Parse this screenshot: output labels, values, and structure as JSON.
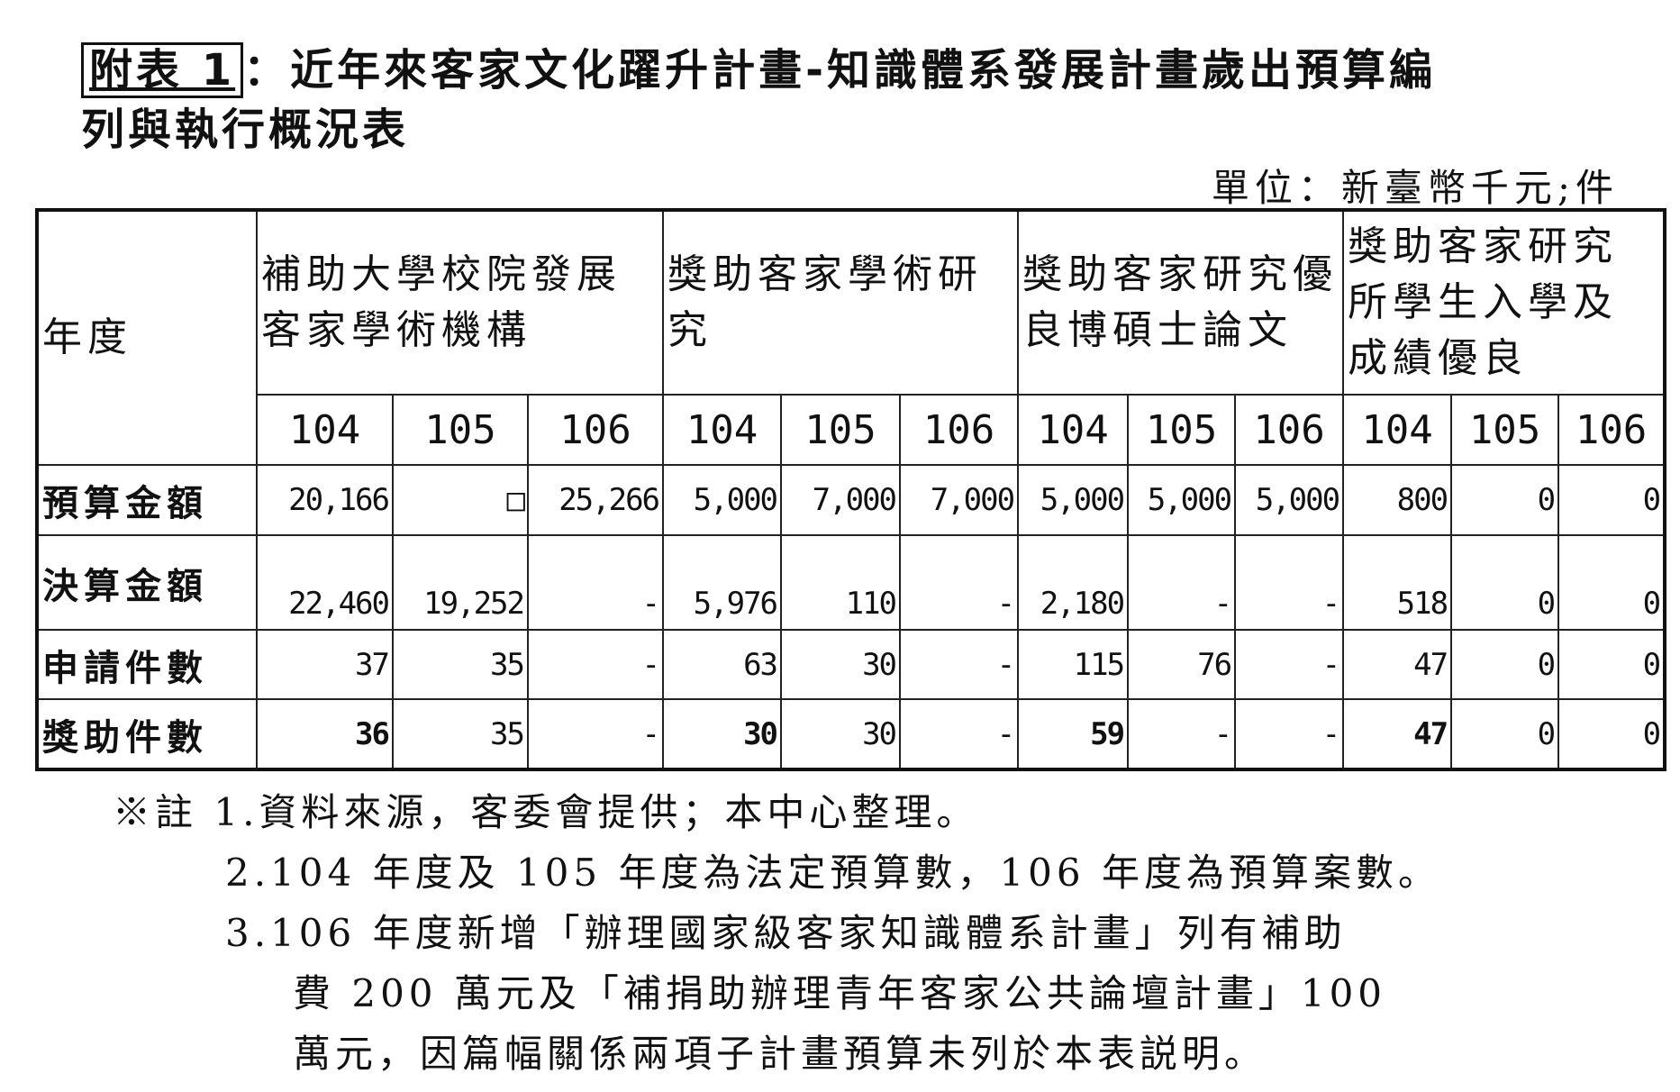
{
  "title": {
    "tag": "附表 1",
    "line1": "：近年來客家文化躍升計畫-知識體系發展計畫歲出預算編",
    "line2": "列與執行概況表"
  },
  "unit": "單位：新臺幣千元;件",
  "table": {
    "corner": "年度",
    "groups": [
      "補助大學校院發展客家學術機構",
      "獎助客家學術研究",
      "獎助客家研究優良博碩士論文",
      "獎助客家研究所學生入學及成績優良"
    ],
    "years": [
      "104",
      "105",
      "106"
    ],
    "rows": [
      {
        "label": "預算金額",
        "values": [
          "20,166",
          "□",
          "25,266",
          "5,000",
          "7,000",
          "7,000",
          "5,000",
          "5,000",
          "5,000",
          "800",
          "0",
          "0"
        ]
      },
      {
        "label": "決算金額",
        "values": [
          "22,460",
          "19,252",
          "-",
          "5,976",
          "110",
          "-",
          "2,180",
          "-",
          "-",
          "518",
          "0",
          "0"
        ]
      },
      {
        "label": "申請件數",
        "values": [
          "37",
          "35",
          "-",
          "63",
          "30",
          "-",
          "115",
          "76",
          "-",
          "47",
          "0",
          "0"
        ]
      },
      {
        "label": "獎助件數",
        "values": [
          "36",
          "35",
          "-",
          "30",
          "30",
          "-",
          "59",
          "-",
          "-",
          "47",
          "0",
          "0"
        ]
      }
    ]
  },
  "notes": [
    "※註 1.資料來源，客委會提供；本中心整理。",
    "2.104 年度及 105 年度為法定預算數，106 年度為預算案數。",
    "3.106 年度新增「辦理國家級客家知識體系計畫」列有補助",
    "費 200 萬元及「補捐助辦理青年客家公共論壇計畫」100",
    "萬元，因篇幅關係兩項子計畫預算未列於本表説明。"
  ]
}
